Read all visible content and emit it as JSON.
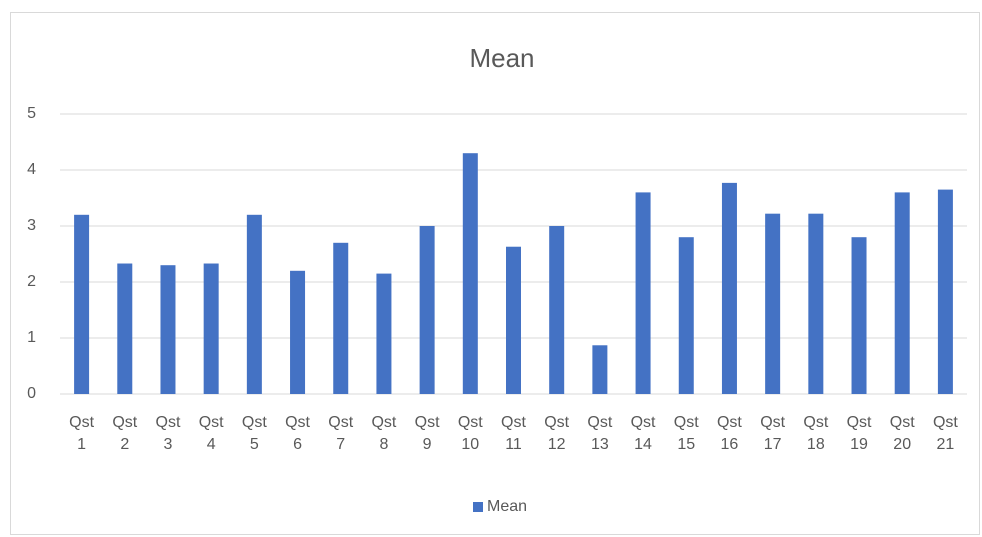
{
  "chart_data": {
    "type": "bar",
    "title": "Mean",
    "categories": [
      "Qst 1",
      "Qst 2",
      "Qst 3",
      "Qst 4",
      "Qst 5",
      "Qst 6",
      "Qst 7",
      "Qst 8",
      "Qst 9",
      "Qst 10",
      "Qst 11",
      "Qst 12",
      "Qst 13",
      "Qst 14",
      "Qst 15",
      "Qst 16",
      "Qst 17",
      "Qst 18",
      "Qst 19",
      "Qst 20",
      "Qst 21"
    ],
    "series": [
      {
        "name": "Mean",
        "color": "#4472c4",
        "values": [
          3.2,
          2.33,
          2.3,
          2.33,
          3.2,
          2.2,
          2.7,
          2.15,
          3.0,
          4.3,
          2.63,
          3.0,
          0.87,
          3.6,
          2.8,
          3.77,
          3.22,
          3.22,
          2.8,
          3.6,
          3.65
        ]
      }
    ],
    "ylim": [
      0,
      5
    ],
    "yticks": [
      0,
      1,
      2,
      3,
      4,
      5
    ],
    "grid": true,
    "legend": "bottom"
  }
}
